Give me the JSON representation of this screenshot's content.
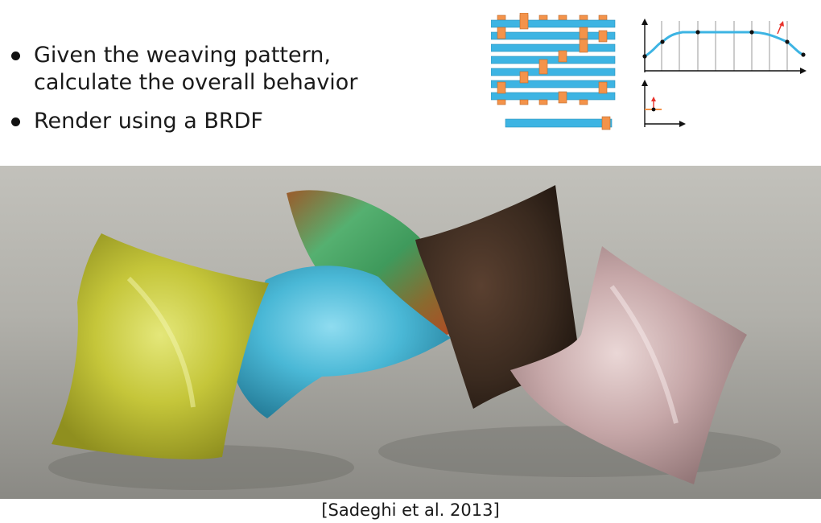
{
  "slide": {
    "bullets": [
      {
        "line1": "Given the weaving pattern,",
        "line2": "calculate the overall behavior"
      },
      {
        "line1": "Render using a BRDF",
        "line2": ""
      }
    ],
    "citation": "[Sadeghi et al. 2013]"
  },
  "colors": {
    "thread_blue": "#3db4e3",
    "thread_orange": "#f4934a",
    "curve_blue": "#3db4e3",
    "arrow_red": "#e8322b",
    "pillow_yellow": "#c5c63a",
    "pillow_cyan": "#4ab8d6",
    "pillow_green": "#46a766",
    "pillow_brown": "#3a2a1f",
    "pillow_pink": "#c6a7a8",
    "floor": "#a6a59f"
  },
  "icons": {
    "weave": "weave-pattern-diagram",
    "profile": "thread-profile-curve",
    "tangent": "tangent-axis-diagram",
    "photo": "rendered-cloth-pillows"
  }
}
